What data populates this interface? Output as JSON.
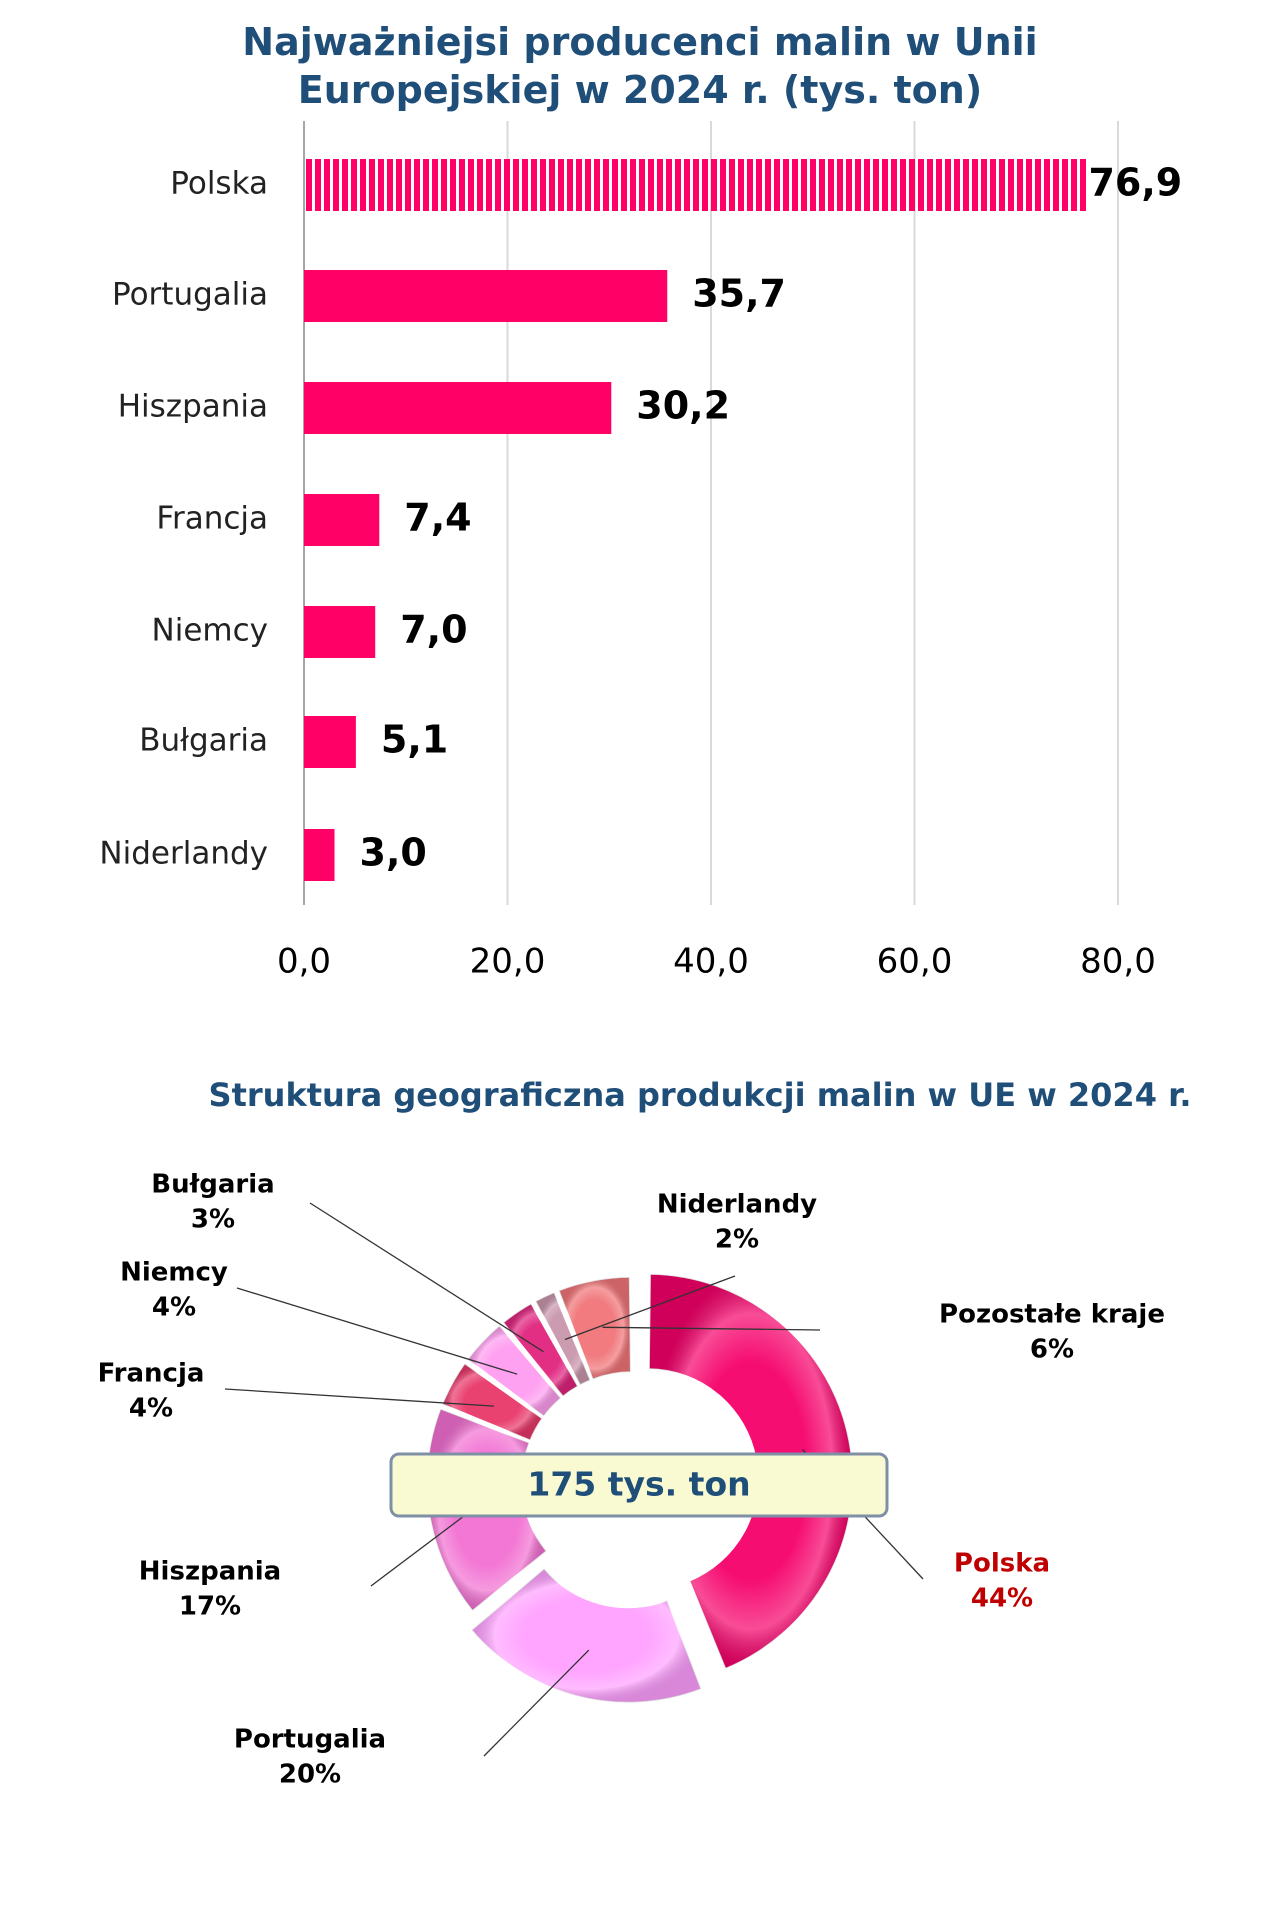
{
  "chart_data": [
    {
      "type": "bar",
      "orientation": "horizontal",
      "title": "Najważniejsi producenci malin w Unii Europejskiej w 2024 r. (tys. ton)",
      "categories": [
        "Polska",
        "Portugalia",
        "Hiszpania",
        "Francja",
        "Niemcy",
        "Bułgaria",
        "Niderlandy"
      ],
      "values": [
        76.9,
        35.7,
        30.2,
        7.4,
        7.0,
        5.1,
        3.0
      ],
      "value_labels": [
        "76,9",
        "35,7",
        "30,2",
        "7,4",
        "7,0",
        "5,1",
        "3,0"
      ],
      "color": "#ff0066",
      "xlim": [
        0,
        80
      ],
      "xticks": [
        {
          "value": 0,
          "label": "0,0"
        },
        {
          "value": 20,
          "label": "20,0"
        },
        {
          "value": 40,
          "label": "40,0"
        },
        {
          "value": 60,
          "label": "60,0"
        },
        {
          "value": 80,
          "label": "80,0"
        }
      ],
      "grid": true
    },
    {
      "type": "donut",
      "title": "Struktura geograficzna produkcji malin w UE w 2024 r.",
      "annotation": "175 tys. ton",
      "categories": [
        "Polska",
        "Portugalia",
        "Hiszpania",
        "Francja",
        "Niemcy",
        "Bułgaria",
        "Niderlandy",
        "Pozostałe kraje"
      ],
      "values": [
        44,
        20,
        17,
        4,
        4,
        3,
        2,
        6
      ],
      "value_labels": [
        "44%",
        "20%",
        "17%",
        "4%",
        "4%",
        "3%",
        "2%",
        "6%"
      ],
      "colors": [
        "#f5006a",
        "#ffa0ff",
        "#f270d2",
        "#e8386a",
        "#ff9cf0",
        "#e0247e",
        "#c896ac",
        "#f07478"
      ],
      "label_colors": [
        "#c00000",
        "#000000",
        "#000000",
        "#000000",
        "#000000",
        "#000000",
        "#000000",
        "#000000"
      ]
    }
  ]
}
